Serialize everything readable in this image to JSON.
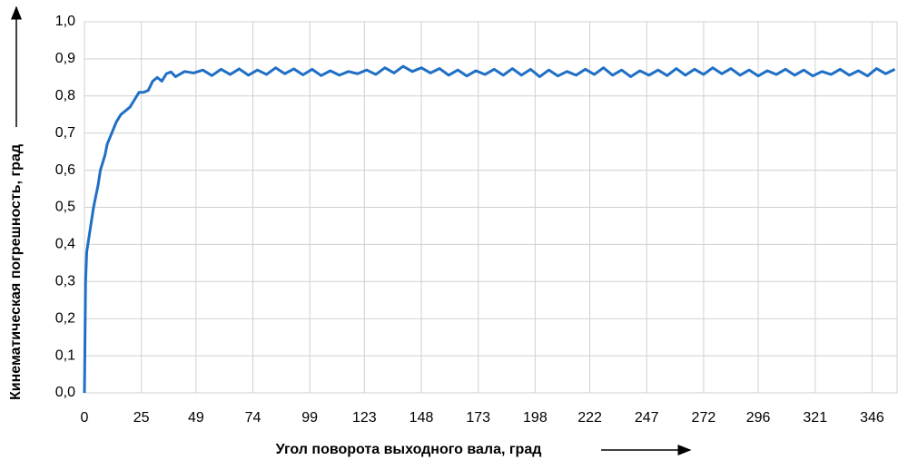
{
  "chart_data": {
    "type": "line",
    "x_label": "Угол поворота  выходного  вала, град",
    "y_label": "Кинематическая  погрешность, град",
    "x": [
      0,
      0.5,
      1,
      2,
      3,
      4,
      5,
      6,
      7,
      8,
      9,
      10,
      12,
      14,
      16,
      18,
      20,
      22,
      24,
      26,
      28,
      30,
      32,
      34,
      36,
      38,
      40,
      44,
      48,
      52,
      56,
      60,
      64,
      68,
      72,
      76,
      80,
      84,
      88,
      92,
      96,
      100,
      104,
      108,
      112,
      116,
      120,
      124,
      128,
      132,
      136,
      140,
      144,
      148,
      152,
      156,
      160,
      164,
      168,
      172,
      176,
      180,
      184,
      188,
      192,
      196,
      200,
      204,
      208,
      212,
      216,
      220,
      224,
      228,
      232,
      236,
      240,
      244,
      248,
      252,
      256,
      260,
      264,
      268,
      272,
      276,
      280,
      284,
      288,
      292,
      296,
      300,
      304,
      308,
      312,
      316,
      320,
      324,
      328,
      332,
      336,
      340,
      344,
      348,
      352,
      356
    ],
    "series": [
      {
        "color": "#1f6fc5",
        "values": [
          0,
          0.3,
          0.38,
          0.42,
          0.46,
          0.5,
          0.53,
          0.56,
          0.6,
          0.62,
          0.64,
          0.67,
          0.7,
          0.73,
          0.75,
          0.76,
          0.77,
          0.79,
          0.81,
          0.81,
          0.815,
          0.84,
          0.85,
          0.84,
          0.86,
          0.865,
          0.852,
          0.866,
          0.862,
          0.87,
          0.855,
          0.872,
          0.858,
          0.873,
          0.856,
          0.87,
          0.858,
          0.876,
          0.86,
          0.873,
          0.857,
          0.872,
          0.855,
          0.868,
          0.856,
          0.866,
          0.86,
          0.87,
          0.858,
          0.876,
          0.862,
          0.88,
          0.866,
          0.876,
          0.862,
          0.874,
          0.856,
          0.87,
          0.854,
          0.868,
          0.858,
          0.872,
          0.856,
          0.874,
          0.856,
          0.872,
          0.852,
          0.87,
          0.854,
          0.866,
          0.856,
          0.872,
          0.858,
          0.876,
          0.856,
          0.87,
          0.852,
          0.868,
          0.856,
          0.87,
          0.855,
          0.874,
          0.856,
          0.872,
          0.858,
          0.876,
          0.86,
          0.874,
          0.856,
          0.87,
          0.854,
          0.868,
          0.858,
          0.872,
          0.856,
          0.87,
          0.854,
          0.866,
          0.858,
          0.872,
          0.856,
          0.868,
          0.854,
          0.874,
          0.86,
          0.872
        ]
      }
    ],
    "xlim": [
      0,
      357
    ],
    "xticks": [
      0,
      25,
      49,
      74,
      99,
      123,
      148,
      173,
      198,
      222,
      247,
      272,
      296,
      321,
      346
    ],
    "ylim": [
      0,
      1
    ],
    "yticks": [
      {
        "value": 0,
        "label": "0,0"
      },
      {
        "value": 0.1,
        "label": "0,1"
      },
      {
        "value": 0.2,
        "label": "0,2"
      },
      {
        "value": 0.3,
        "label": "0,3"
      },
      {
        "value": 0.4,
        "label": "0,4"
      },
      {
        "value": 0.5,
        "label": "0,5"
      },
      {
        "value": 0.6,
        "label": "0,6"
      },
      {
        "value": 0.7,
        "label": "0,7"
      },
      {
        "value": 0.8,
        "label": "0,8"
      },
      {
        "value": 0.9,
        "label": "0,9"
      },
      {
        "value": 1,
        "label": "1,0"
      }
    ],
    "grid": true
  }
}
